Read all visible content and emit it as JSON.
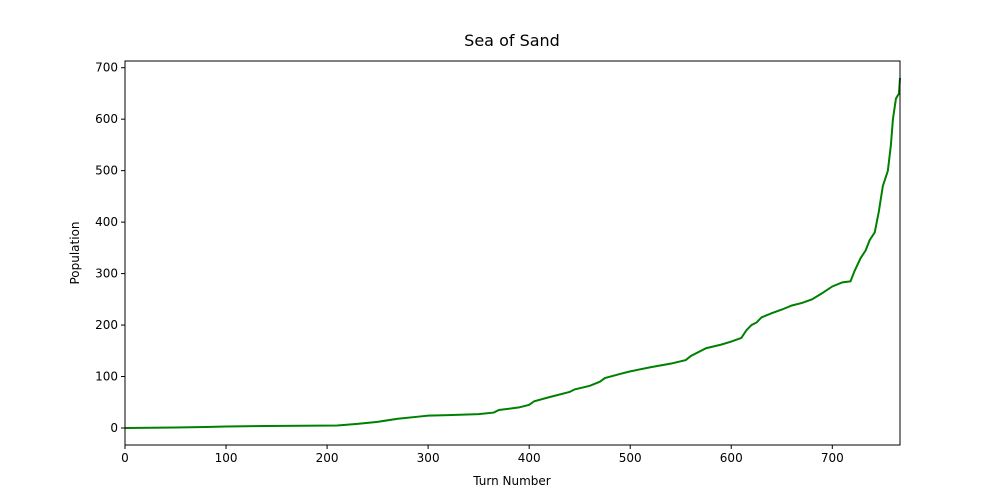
{
  "chart_data": {
    "type": "line",
    "title": "Sea of Sand",
    "x_label": "Turn Number",
    "y_label": "Population",
    "x": [
      0,
      50,
      80,
      100,
      140,
      210,
      230,
      250,
      270,
      290,
      300,
      320,
      350,
      365,
      370,
      390,
      400,
      405,
      420,
      440,
      445,
      460,
      470,
      475,
      490,
      500,
      520,
      540,
      555,
      560,
      575,
      590,
      600,
      610,
      615,
      620,
      625,
      630,
      640,
      650,
      660,
      670,
      680,
      690,
      700,
      710,
      718,
      722,
      728,
      733,
      737,
      742,
      746,
      750,
      755,
      758,
      760,
      763,
      766,
      767
    ],
    "series": [
      {
        "name": "Population",
        "color": "#008000",
        "values": [
          0,
          1,
          2,
          3,
          4,
          5,
          8,
          12,
          18,
          22,
          24,
          25,
          27,
          30,
          35,
          40,
          45,
          52,
          60,
          70,
          75,
          82,
          90,
          97,
          105,
          110,
          118,
          125,
          132,
          140,
          155,
          162,
          168,
          175,
          190,
          200,
          205,
          215,
          223,
          230,
          238,
          243,
          250,
          262,
          275,
          283,
          285,
          305,
          330,
          345,
          365,
          380,
          420,
          470,
          500,
          550,
          600,
          640,
          650,
          680
        ]
      }
    ],
    "xlim": [
      0,
      767
    ],
    "xticks": [
      0,
      100,
      200,
      300,
      400,
      500,
      600,
      700
    ],
    "ylim": [
      -33,
      713
    ],
    "yticks": [
      0,
      100,
      200,
      300,
      400,
      500,
      600,
      700
    ]
  }
}
